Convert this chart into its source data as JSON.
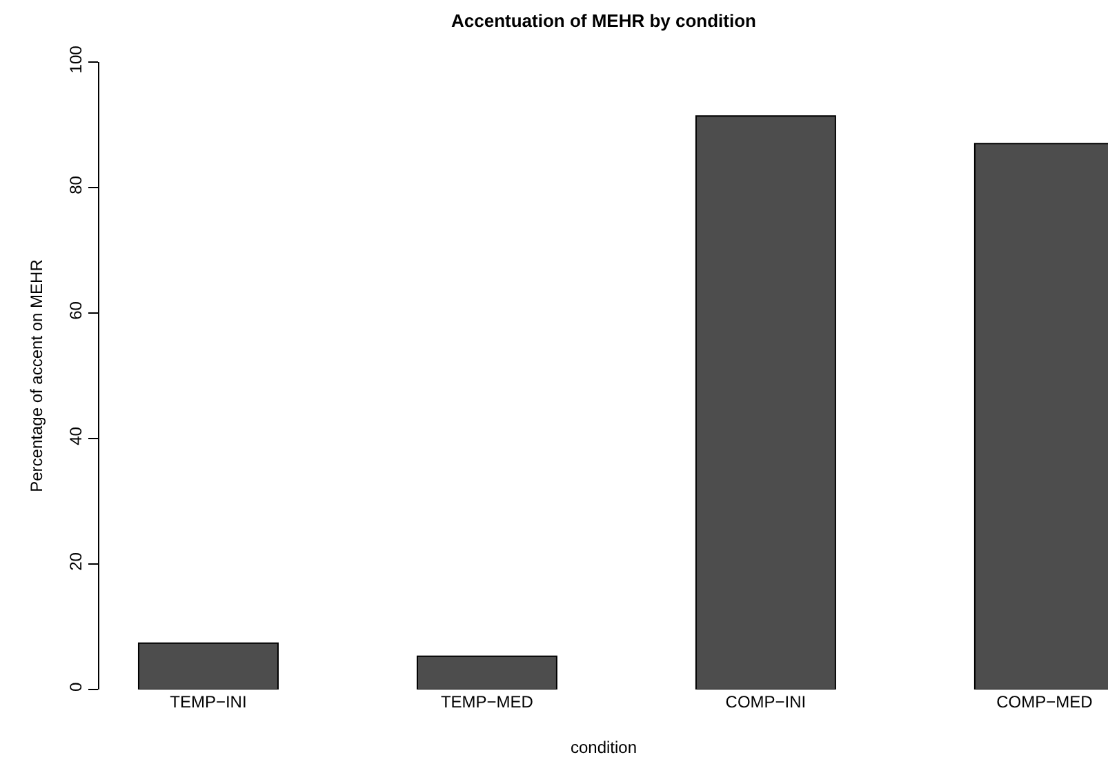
{
  "chart_data": {
    "type": "bar",
    "title": "Accentuation of MEHR by condition",
    "xlabel": "condition",
    "ylabel": "Percentage of accent on MEHR",
    "categories": [
      "TEMP−INI",
      "TEMP−MED",
      "COMP−INI",
      "COMP−MED"
    ],
    "values": [
      7.4,
      5.3,
      91.4,
      87.0
    ],
    "color": "#4d4d4d",
    "ylim": [
      0,
      100
    ],
    "yticks": [
      0,
      20,
      40,
      60,
      80,
      100
    ]
  }
}
